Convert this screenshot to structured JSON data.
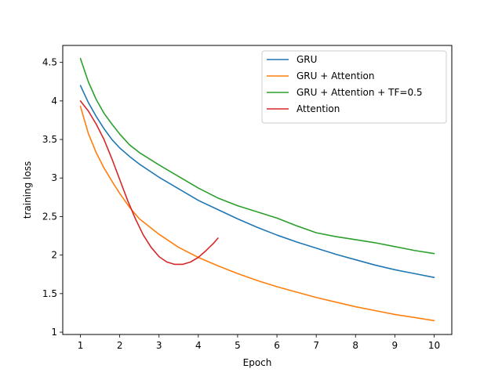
{
  "chart_data": {
    "type": "line",
    "xlabel": "Epoch",
    "ylabel": "training loss",
    "xlim": [
      0.55,
      10.45
    ],
    "ylim": [
      0.97,
      4.72
    ],
    "xticks": [
      1,
      2,
      3,
      4,
      5,
      6,
      7,
      8,
      9,
      10
    ],
    "yticks": [
      1.0,
      1.5,
      2.0,
      2.5,
      3.0,
      3.5,
      4.0,
      4.5
    ],
    "grid": false,
    "legend_position": "top-right",
    "series": [
      {
        "name": "GRU",
        "color": "#1f77b4",
        "x": [
          1,
          1.2,
          1.4,
          1.6,
          1.8,
          2,
          2.25,
          2.5,
          3,
          3.5,
          4,
          4.5,
          5,
          5.5,
          6,
          6.5,
          7,
          7.5,
          8,
          8.5,
          9,
          9.5,
          10
        ],
        "y": [
          4.2,
          3.98,
          3.8,
          3.64,
          3.5,
          3.39,
          3.28,
          3.18,
          3.01,
          2.86,
          2.71,
          2.59,
          2.47,
          2.36,
          2.26,
          2.17,
          2.09,
          2.01,
          1.94,
          1.87,
          1.81,
          1.76,
          1.71
        ]
      },
      {
        "name": "GRU + Attention",
        "color": "#ff7f0e",
        "x": [
          1,
          1.2,
          1.4,
          1.6,
          1.8,
          2,
          2.25,
          2.5,
          3,
          3.5,
          4,
          4.5,
          5,
          5.5,
          6,
          6.5,
          7,
          7.5,
          8,
          8.5,
          9,
          9.5,
          10
        ],
        "y": [
          3.93,
          3.58,
          3.33,
          3.13,
          2.96,
          2.8,
          2.62,
          2.47,
          2.27,
          2.1,
          1.97,
          1.86,
          1.76,
          1.67,
          1.59,
          1.52,
          1.45,
          1.39,
          1.33,
          1.28,
          1.23,
          1.19,
          1.15
        ]
      },
      {
        "name": "GRU + Attention + TF=0.5",
        "color": "#2ca02c",
        "x": [
          1,
          1.2,
          1.4,
          1.6,
          1.8,
          2,
          2.25,
          2.5,
          3,
          3.5,
          4,
          4.5,
          5,
          5.5,
          6,
          6.5,
          7,
          7.5,
          8,
          8.5,
          9,
          9.5,
          10
        ],
        "y": [
          4.55,
          4.25,
          4.02,
          3.84,
          3.7,
          3.57,
          3.43,
          3.33,
          3.17,
          3.02,
          2.87,
          2.74,
          2.64,
          2.56,
          2.48,
          2.38,
          2.29,
          2.24,
          2.2,
          2.16,
          2.11,
          2.06,
          2.02
        ]
      },
      {
        "name": "Attention",
        "color": "#d62728",
        "x": [
          1,
          1.2,
          1.4,
          1.6,
          1.8,
          2,
          2.2,
          2.4,
          2.6,
          2.8,
          3,
          3.2,
          3.4,
          3.6,
          3.8,
          4,
          4.2,
          4.4,
          4.5
        ],
        "y": [
          4.0,
          3.87,
          3.7,
          3.5,
          3.25,
          2.98,
          2.71,
          2.47,
          2.26,
          2.1,
          1.98,
          1.91,
          1.88,
          1.88,
          1.91,
          1.97,
          2.06,
          2.16,
          2.22
        ]
      }
    ]
  }
}
